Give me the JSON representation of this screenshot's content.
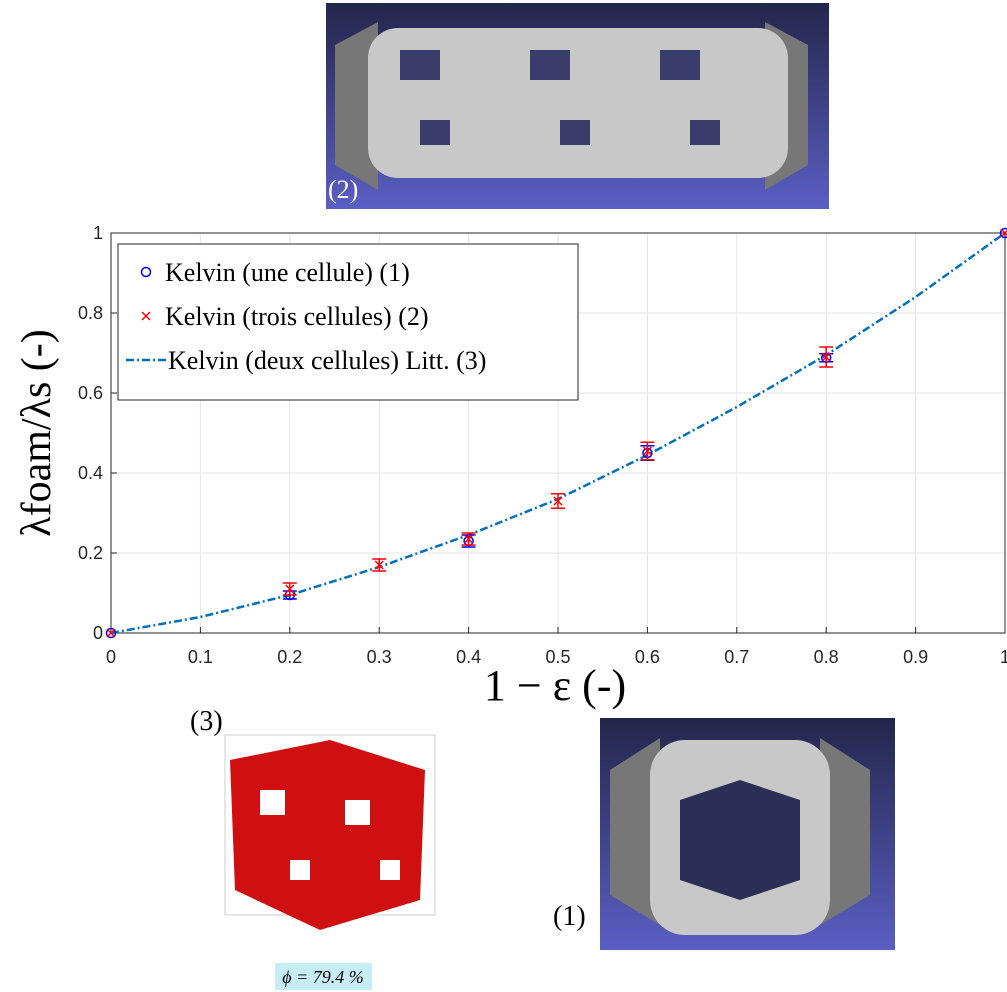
{
  "chart_data": {
    "type": "line",
    "x_label": "1 − ε (-)",
    "y_label": "λfoam/λs (-)",
    "xlim": [
      0,
      1
    ],
    "ylim": [
      0,
      1
    ],
    "xticks": [
      0,
      0.1,
      0.2,
      0.3,
      0.4,
      0.5,
      0.6,
      0.7,
      0.8,
      0.9,
      1
    ],
    "yticks": [
      0,
      0.2,
      0.4,
      0.6,
      0.8,
      1
    ],
    "grid": true,
    "legend": "upper left",
    "series": [
      {
        "name": "Kelvin (une cellule) (1)",
        "color": "#0000ff",
        "marker": "o",
        "x": [
          0,
          0.2,
          0.4,
          0.6,
          0.8,
          1
        ],
        "values": [
          0,
          0.095,
          0.23,
          0.45,
          0.688,
          1
        ],
        "errors": [
          0,
          0.01,
          0.015,
          0.018,
          0.01,
          0
        ]
      },
      {
        "name": "Kelvin (trois cellules) (2)",
        "color": "#ff0000",
        "marker": "x",
        "x": [
          0,
          0.2,
          0.3,
          0.4,
          0.5,
          0.6,
          0.8,
          1
        ],
        "values": [
          0,
          0.11,
          0.17,
          0.235,
          0.33,
          0.455,
          0.69,
          1
        ],
        "errors": [
          0,
          0.015,
          0.015,
          0.015,
          0.018,
          0.022,
          0.025,
          0
        ]
      },
      {
        "name": "Kelvin (deux cellules) Litt. (3)",
        "color": "#0072bd",
        "linestyle": "-.",
        "x": [
          0,
          0.1,
          0.2,
          0.3,
          0.4,
          0.5,
          0.6,
          0.7,
          0.8,
          0.9,
          1
        ],
        "values": [
          0,
          0.04,
          0.095,
          0.165,
          0.245,
          0.335,
          0.445,
          0.565,
          0.695,
          0.84,
          1
        ]
      }
    ],
    "annotations": [
      "(2)",
      "(3)",
      "(1)",
      "ϕ = 79.4 %"
    ]
  }
}
